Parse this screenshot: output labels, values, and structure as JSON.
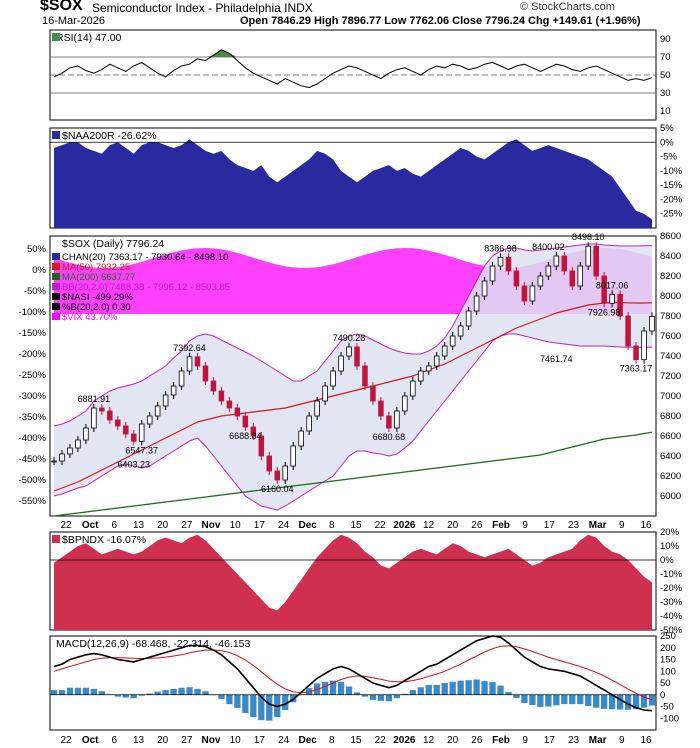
{
  "header": {
    "symbol": "$SOX",
    "name": "Semiconductor Index - Philadelphia INDX",
    "date": "16-Mar-2026",
    "ohlc": "Open 7846.29  High 7896.77  Low 7762.06  Close 7796.24  Chg +149.61 (+1.96%)",
    "copyright": "© StockCharts.com"
  },
  "colors": {
    "price_up": "#000000",
    "price_down": "#c0143c",
    "ma50": "#d7191c",
    "ma200": "#1a6a1a",
    "bollinger": "#c020c0",
    "vix_fill": "#ff00ff",
    "naa_fill": "#2a2aa0",
    "bpndx_fill": "#d03050",
    "rsi_fill": "#4a8a4a"
  },
  "chart_data": [
    {
      "type": "line",
      "title": "RSI(14) 47.00",
      "ylim": [
        0,
        100
      ],
      "yticks": [
        "90",
        "70",
        "50",
        "30",
        "10"
      ],
      "reference_levels": [
        70,
        50,
        30
      ],
      "series": [
        {
          "name": "RSI(14)",
          "values": [
            48,
            52,
            58,
            60,
            55,
            52,
            56,
            62,
            58,
            54,
            60,
            64,
            58,
            52,
            48,
            55,
            60,
            62,
            68,
            66,
            72,
            78,
            74,
            66,
            58,
            52,
            48,
            44,
            40,
            46,
            42,
            38,
            36,
            40,
            46,
            52,
            56,
            60,
            58,
            54,
            50,
            46,
            52,
            56,
            58,
            54,
            50,
            56,
            60,
            58,
            62,
            60,
            56,
            58,
            62,
            64,
            60,
            56,
            60,
            62,
            58,
            54,
            58,
            62,
            60,
            56,
            54,
            58,
            60,
            56,
            52,
            48,
            44,
            46,
            44,
            47
          ]
        }
      ]
    },
    {
      "type": "area",
      "title": "$NAA200R -26.62%",
      "ylim": [
        -30,
        5
      ],
      "yticks": [
        "5%",
        "0%",
        "-5%",
        "-10%",
        "-15%",
        "-20%",
        "-25%"
      ],
      "series": [
        {
          "name": "$NAA200R",
          "values": [
            -2,
            -1,
            0,
            0,
            -2,
            -3,
            -4,
            -1,
            0,
            -2,
            -4,
            -1,
            0,
            0,
            -1,
            -2,
            -1,
            1,
            -1,
            -3,
            -4,
            -3,
            -6,
            -8,
            -9,
            -10,
            -8,
            -12,
            -14,
            -12,
            -10,
            -8,
            -6,
            -3,
            -4,
            -6,
            -10,
            -12,
            -14,
            -12,
            -10,
            -9,
            -8,
            -10,
            -9,
            -11,
            -12,
            -10,
            -8,
            -6,
            -4,
            -2,
            -3,
            -5,
            -6,
            -4,
            -2,
            0,
            1,
            -1,
            -3,
            -2,
            -1,
            -2,
            -3,
            -4,
            -5,
            -6,
            -8,
            -10,
            -12,
            -16,
            -20,
            -24,
            -25,
            -27
          ]
        }
      ]
    },
    {
      "type": "line",
      "title": "$SOX (Daily) 7796.24",
      "x_tick_labels": [
        "22",
        "Oct",
        "6",
        "13",
        "20",
        "27",
        "Nov",
        "10",
        "17",
        "24",
        "Dec",
        "8",
        "15",
        "22",
        "2026",
        "12",
        "20",
        "26",
        "Feb",
        "9",
        "17",
        "23",
        "Mar",
        "9",
        "16"
      ],
      "ylim": [
        5800,
        8600
      ],
      "yticks_right": [
        "8600",
        "8400",
        "8200",
        "8000",
        "7800",
        "7600",
        "7400",
        "7200",
        "7000",
        "6800",
        "6600",
        "6400",
        "6200",
        "6000"
      ],
      "yticks_left": [
        "50%",
        "0%",
        "-50%",
        "-100%",
        "-150%",
        "-200%",
        "-250%",
        "-300%",
        "-350%",
        "-400%",
        "-450%",
        "-500%",
        "-550%"
      ],
      "legend": [
        "CHAN(20) 7363.17 - 7930.64 - 8498.10",
        "MA(50) 7932.25",
        "MA(200) 6637.77",
        "BB(20,2.0) 7488.38 - 7996.12 - 8503.85",
        "$NASI -499.29%",
        "%B(20,2.0) 0.30",
        "$VIX 43.70%"
      ],
      "annotations": [
        "7392.64",
        "6881.91",
        "6403.23",
        "6547.37",
        "6688.84",
        "6160.04",
        "7490.28",
        "6680.68",
        "8386.98",
        "8400.02",
        "8498.10",
        "7926.98",
        "8017.06",
        "7461.74",
        "7363.17"
      ],
      "series": [
        {
          "name": "$SOX",
          "values": [
            6350,
            6420,
            6480,
            6560,
            6680,
            6880,
            6850,
            6760,
            6700,
            6620,
            6547,
            6720,
            6800,
            6900,
            7010,
            7100,
            7250,
            7392,
            7300,
            7150,
            7050,
            6950,
            6880,
            6800,
            6690,
            6600,
            6400,
            6250,
            6160,
            6300,
            6500,
            6650,
            6800,
            6950,
            7100,
            7250,
            7400,
            7490,
            7300,
            7100,
            6950,
            6800,
            6680,
            6850,
            7000,
            7150,
            7250,
            7300,
            7400,
            7500,
            7600,
            7700,
            7850,
            8000,
            8150,
            8300,
            8387,
            8250,
            8100,
            7950,
            8100,
            8200,
            8300,
            8400,
            8250,
            8100,
            8300,
            8498,
            8200,
            7927,
            8017,
            7800,
            7500,
            7363,
            7650,
            7796
          ]
        },
        {
          "name": "MA(50)",
          "values": [
            6050,
            6080,
            6110,
            6140,
            6180,
            6220,
            6260,
            6300,
            6340,
            6380,
            6420,
            6460,
            6500,
            6540,
            6580,
            6620,
            6660,
            6700,
            6740,
            6760,
            6780,
            6800,
            6810,
            6820,
            6830,
            6840,
            6850,
            6860,
            6870,
            6880,
            6900,
            6920,
            6940,
            6960,
            6980,
            7000,
            7020,
            7040,
            7060,
            7080,
            7100,
            7120,
            7140,
            7160,
            7180,
            7200,
            7230,
            7260,
            7290,
            7320,
            7360,
            7400,
            7440,
            7480,
            7520,
            7560,
            7600,
            7640,
            7680,
            7710,
            7740,
            7770,
            7800,
            7830,
            7850,
            7870,
            7890,
            7910,
            7920,
            7930,
            7935,
            7935,
            7932,
            7930,
            7930,
            7932
          ]
        },
        {
          "name": "MA(200)",
          "values": [
            5800,
            5810,
            5820,
            5830,
            5840,
            5850,
            5860,
            5870,
            5880,
            5890,
            5900,
            5910,
            5920,
            5930,
            5940,
            5950,
            5960,
            5970,
            5980,
            5990,
            6000,
            6010,
            6020,
            6030,
            6040,
            6050,
            6060,
            6070,
            6080,
            6090,
            6100,
            6110,
            6120,
            6130,
            6140,
            6150,
            6160,
            6170,
            6180,
            6190,
            6200,
            6210,
            6220,
            6230,
            6240,
            6250,
            6260,
            6270,
            6280,
            6290,
            6300,
            6310,
            6320,
            6330,
            6340,
            6350,
            6360,
            6370,
            6380,
            6390,
            6400,
            6410,
            6430,
            6450,
            6470,
            6490,
            6510,
            6530,
            6550,
            6570,
            6580,
            6590,
            6600,
            6610,
            6625,
            6638
          ]
        },
        {
          "name": "BB upper",
          "values": [
            6700,
            6720,
            6750,
            6800,
            6850,
            6950,
            7000,
            7050,
            7080,
            7100,
            7120,
            7150,
            7200,
            7250,
            7300,
            7380,
            7450,
            7550,
            7600,
            7620,
            7600,
            7560,
            7520,
            7480,
            7440,
            7400,
            7350,
            7300,
            7250,
            7200,
            7150,
            7150,
            7200,
            7250,
            7350,
            7450,
            7550,
            7600,
            7620,
            7600,
            7560,
            7520,
            7480,
            7450,
            7430,
            7420,
            7420,
            7450,
            7500,
            7580,
            7700,
            7850,
            8000,
            8150,
            8300,
            8400,
            8450,
            8480,
            8480,
            8460,
            8450,
            8460,
            8470,
            8480,
            8490,
            8500,
            8510,
            8520,
            8520,
            8510,
            8505,
            8500,
            8500,
            8500,
            8502,
            8504
          ]
        },
        {
          "name": "BB lower",
          "values": [
            6000,
            6020,
            6050,
            6080,
            6100,
            6150,
            6200,
            6250,
            6300,
            6320,
            6300,
            6280,
            6300,
            6350,
            6400,
            6450,
            6500,
            6550,
            6580,
            6500,
            6400,
            6300,
            6200,
            6100,
            6000,
            5950,
            5900,
            5880,
            5860,
            5900,
            5950,
            6000,
            6050,
            6100,
            6150,
            6200,
            6300,
            6400,
            6450,
            6450,
            6430,
            6420,
            6400,
            6420,
            6480,
            6550,
            6650,
            6750,
            6850,
            6950,
            7050,
            7150,
            7250,
            7350,
            7450,
            7550,
            7600,
            7620,
            7620,
            7600,
            7580,
            7560,
            7540,
            7530,
            7520,
            7510,
            7500,
            7500,
            7500,
            7500,
            7495,
            7490,
            7488,
            7488,
            7488,
            7488
          ]
        }
      ]
    },
    {
      "type": "area",
      "title": "$BPNDX -16.07%",
      "ylim": [
        -50,
        20
      ],
      "yticks": [
        "20%",
        "10%",
        "0%",
        "-10%",
        "-20%",
        "-30%",
        "-40%",
        "-50%"
      ],
      "series": [
        {
          "name": "$BPNDX",
          "values": [
            -2,
            2,
            6,
            10,
            12,
            8,
            4,
            6,
            8,
            6,
            4,
            6,
            10,
            14,
            16,
            14,
            12,
            16,
            18,
            14,
            8,
            2,
            -4,
            -10,
            -16,
            -22,
            -28,
            -34,
            -36,
            -30,
            -22,
            -14,
            -6,
            2,
            8,
            14,
            18,
            16,
            12,
            6,
            2,
            -4,
            -6,
            -2,
            2,
            6,
            8,
            6,
            4,
            8,
            12,
            10,
            6,
            4,
            2,
            4,
            6,
            8,
            4,
            0,
            -4,
            -2,
            2,
            4,
            6,
            8,
            14,
            18,
            16,
            10,
            6,
            4,
            0,
            -6,
            -12,
            -16
          ]
        }
      ]
    },
    {
      "type": "line",
      "title": "MACD(12,26,9) -68.468, -22.314, -46.153",
      "ylim": [
        -150,
        250
      ],
      "yticks": [
        "250",
        "200",
        "150",
        "100",
        "50",
        "0",
        "-50",
        "-100"
      ],
      "x_tick_labels": [
        "22",
        "Oct",
        "6",
        "13",
        "20",
        "27",
        "Nov",
        "10",
        "17",
        "24",
        "Dec",
        "8",
        "15",
        "22",
        "2026",
        "12",
        "20",
        "26",
        "Feb",
        "9",
        "17",
        "23",
        "Mar",
        "9",
        "16"
      ],
      "series": [
        {
          "name": "MACD",
          "values": [
            120,
            130,
            150,
            160,
            170,
            175,
            170,
            160,
            150,
            145,
            140,
            150,
            160,
            170,
            180,
            190,
            200,
            210,
            210,
            205,
            190,
            170,
            140,
            110,
            70,
            30,
            -10,
            -40,
            -50,
            -40,
            -20,
            10,
            40,
            70,
            90,
            110,
            120,
            110,
            90,
            70,
            50,
            40,
            30,
            40,
            60,
            80,
            100,
            120,
            130,
            150,
            170,
            190,
            210,
            230,
            240,
            250,
            245,
            220,
            190,
            160,
            140,
            120,
            110,
            105,
            100,
            90,
            80,
            60,
            40,
            20,
            0,
            -20,
            -40,
            -55,
            -65,
            -68
          ]
        },
        {
          "name": "Signal",
          "values": [
            100,
            110,
            120,
            130,
            140,
            150,
            155,
            158,
            158,
            157,
            155,
            154,
            155,
            157,
            160,
            165,
            170,
            178,
            185,
            190,
            190,
            188,
            180,
            166,
            148,
            125,
            98,
            70,
            45,
            25,
            12,
            8,
            12,
            22,
            35,
            50,
            65,
            75,
            80,
            78,
            72,
            66,
            58,
            55,
            56,
            60,
            68,
            78,
            88,
            100,
            115,
            130,
            148,
            165,
            182,
            196,
            206,
            208,
            204,
            195,
            184,
            172,
            160,
            150,
            140,
            130,
            120,
            108,
            95,
            80,
            62,
            43,
            24,
            6,
            -10,
            -22
          ]
        }
      ]
    }
  ]
}
